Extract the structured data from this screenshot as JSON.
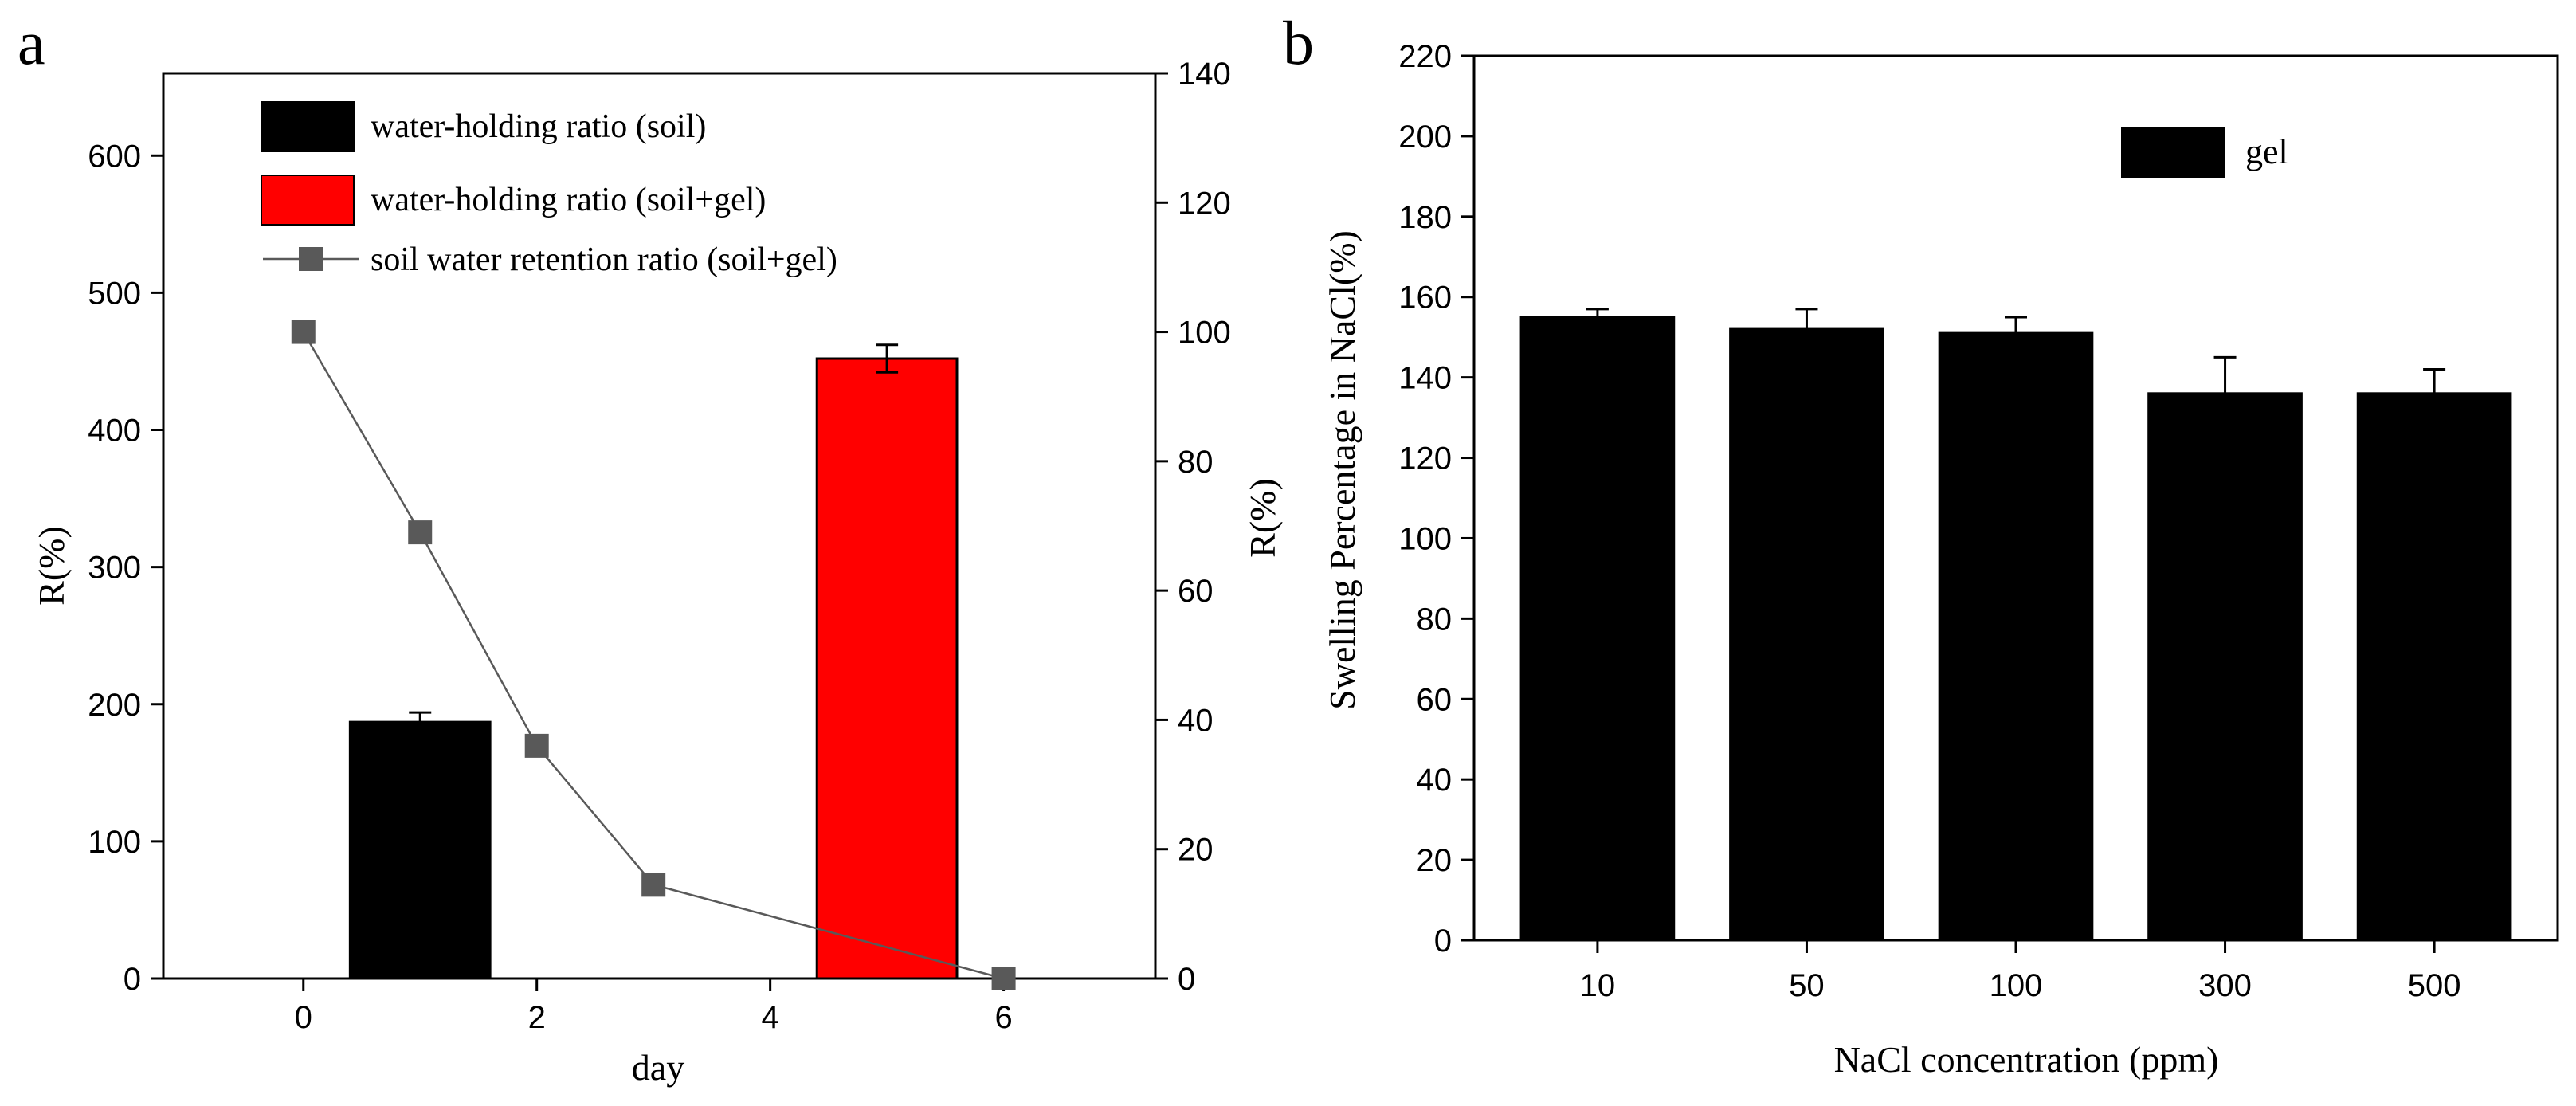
{
  "chart_data": [
    {
      "panel_label": "a",
      "type": "bar+line",
      "xlabel": "day",
      "ylabel_left": "R(%)",
      "ylabel_right": "R(%)",
      "xlim": [
        -1.2,
        7.3
      ],
      "ylim_left": [
        0,
        660
      ],
      "ylim_right": [
        0,
        140
      ],
      "xticks": [
        0,
        2,
        4,
        6
      ],
      "yticks_left": [
        0,
        100,
        200,
        300,
        400,
        500,
        600
      ],
      "yticks_right": [
        0,
        20,
        40,
        60,
        80,
        100,
        120,
        140
      ],
      "legend_position": "top-left",
      "series": [
        {
          "name": "water-holding ratio (soil)",
          "type": "bar",
          "axis": "left",
          "color": "#000000",
          "x": [
            1
          ],
          "values": [
            187
          ],
          "errors": [
            7
          ],
          "bar_width_days": 1.2
        },
        {
          "name": "water-holding ratio (soil+gel)",
          "type": "bar",
          "axis": "left",
          "color": "#ff0000",
          "x": [
            5
          ],
          "values": [
            452
          ],
          "errors": [
            10
          ],
          "bar_width_days": 1.2
        },
        {
          "name": "soil water retention ratio (soil+gel)",
          "type": "line",
          "marker": "square",
          "axis": "right",
          "color": "#595959",
          "x": [
            0,
            1,
            2,
            3,
            6
          ],
          "values": [
            100,
            69,
            36,
            14.5,
            0
          ]
        }
      ]
    },
    {
      "panel_label": "b",
      "type": "bar",
      "xlabel": "NaCl concentration (ppm)",
      "ylabel": "Swelling Percentage in NaCl(%)",
      "ylim": [
        0,
        220
      ],
      "yticks": [
        0,
        20,
        40,
        60,
        80,
        100,
        120,
        140,
        160,
        180,
        200,
        220
      ],
      "categories": [
        "10",
        "50",
        "100",
        "300",
        "500"
      ],
      "legend_position": "top-right",
      "series": [
        {
          "name": "gel",
          "color": "#000000",
          "values": [
            155,
            152,
            151,
            136,
            136
          ],
          "errors": [
            2,
            5,
            4,
            9,
            6
          ]
        }
      ]
    }
  ]
}
